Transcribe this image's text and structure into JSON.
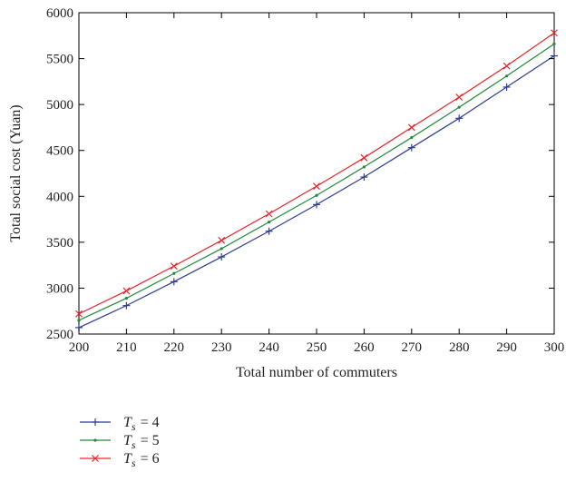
{
  "chart_data": {
    "type": "line",
    "title": "",
    "xlabel": "Total number of commuters",
    "ylabel": "Total social cost (Yuan)",
    "xlim": [
      200,
      300
    ],
    "ylim": [
      2500,
      6000
    ],
    "xticks": [
      200,
      210,
      220,
      230,
      240,
      250,
      260,
      270,
      280,
      290,
      300
    ],
    "yticks": [
      2500,
      3000,
      3500,
      4000,
      4500,
      5000,
      5500,
      6000
    ],
    "grid": false,
    "legend_position": "below",
    "x": [
      200,
      210,
      220,
      230,
      240,
      250,
      260,
      270,
      280,
      290,
      300
    ],
    "series": [
      {
        "name": "T_s = 4",
        "legend_sub": "s",
        "legend_value": "= 4",
        "color": "#2d3c8f",
        "marker": "plus",
        "values": [
          2570,
          2810,
          3070,
          3340,
          3620,
          3910,
          4210,
          4530,
          4850,
          5190,
          5530
        ]
      },
      {
        "name": "T_s = 5",
        "legend_sub": "s",
        "legend_value": "= 5",
        "color": "#1f8a3a",
        "marker": "dot",
        "values": [
          2650,
          2890,
          3160,
          3430,
          3720,
          4010,
          4320,
          4640,
          4970,
          5310,
          5660
        ]
      },
      {
        "name": "T_s = 6",
        "legend_sub": "s",
        "legend_value": "= 6",
        "color": "#e8262b",
        "marker": "x",
        "values": [
          2720,
          2970,
          3240,
          3520,
          3810,
          4110,
          4420,
          4750,
          5080,
          5420,
          5780
        ]
      }
    ]
  }
}
